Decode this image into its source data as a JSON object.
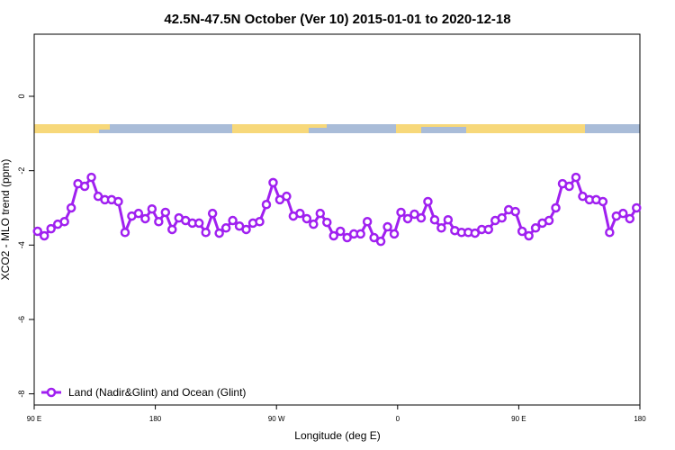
{
  "chart_data": {
    "type": "line",
    "title": "42.5N-47.5N October (Ver 10)   2015-01-01 to 2020-12-18",
    "x_label": "Longitude (deg E)",
    "y_label": "XCO2 - MLO trend (ppm)",
    "xlim": [
      90,
      540
    ],
    "xticks": [
      {
        "value": 90,
        "label": "90 E"
      },
      {
        "value": 180,
        "label": "180"
      },
      {
        "value": 270,
        "label": "90 W"
      },
      {
        "value": 360,
        "label": "0"
      },
      {
        "value": 450,
        "label": "90 E"
      },
      {
        "value": 540,
        "label": "180"
      }
    ],
    "ylim": [
      -8.3,
      1.67
    ],
    "yticks": [
      0,
      -2,
      -4,
      -6,
      -8
    ],
    "legend": "bottom-left",
    "x": [
      92.5,
      97.5,
      102.5,
      107.5,
      112.5,
      117.5,
      122.5,
      127.5,
      132.5,
      137.5,
      142.5,
      147.5,
      152.5,
      157.5,
      162.5,
      167.5,
      172.5,
      177.5,
      182.5,
      187.5,
      192.5,
      197.5,
      202.5,
      207.5,
      212.5,
      217.5,
      222.5,
      227.5,
      232.5,
      237.5,
      242.5,
      247.5,
      252.5,
      257.5,
      262.5,
      267.5,
      272.5,
      277.5,
      282.5,
      287.5,
      292.5,
      297.5,
      302.5,
      307.5,
      312.5,
      317.5,
      322.5,
      327.5,
      332.5,
      337.5,
      342.5,
      347.5,
      352.5,
      357.5,
      362.5,
      367.5,
      372.5,
      377.5,
      382.5,
      387.5,
      392.5,
      397.5,
      402.5,
      407.5,
      412.5,
      417.5,
      422.5,
      427.5,
      432.5,
      437.5,
      442.5,
      447.5,
      452.5,
      457.5,
      462.5,
      467.5,
      472.5,
      477.5,
      482.5,
      487.5,
      492.5,
      497.5,
      502.5,
      507.5,
      512.5,
      517.5,
      522.5,
      527.5,
      532.5,
      537.5
    ],
    "series": [
      {
        "name": "Land (Nadir&Glint) and Ocean (Glint)",
        "color": "#a020f0",
        "values": [
          -3.63,
          -3.75,
          -3.56,
          -3.44,
          -3.37,
          -3.0,
          -2.35,
          -2.42,
          -2.18,
          -2.69,
          -2.78,
          -2.78,
          -2.83,
          -3.66,
          -3.22,
          -3.15,
          -3.29,
          -3.03,
          -3.37,
          -3.12,
          -3.58,
          -3.27,
          -3.34,
          -3.41,
          -3.41,
          -3.66,
          -3.15,
          -3.68,
          -3.54,
          -3.34,
          -3.49,
          -3.58,
          -3.41,
          -3.37,
          -2.91,
          -2.32,
          -2.78,
          -2.69,
          -3.22,
          -3.15,
          -3.29,
          -3.44,
          -3.15,
          -3.39,
          -3.75,
          -3.63,
          -3.8,
          -3.7,
          -3.7,
          -3.37,
          -3.8,
          -3.9,
          -3.51,
          -3.7,
          -3.12,
          -3.29,
          -3.17,
          -3.27,
          -2.83,
          -3.32,
          -3.54,
          -3.32,
          -3.61,
          -3.66,
          -3.66,
          -3.68,
          -3.58,
          -3.58,
          -3.34,
          -3.27,
          -3.05,
          -3.1,
          -3.63,
          -3.75,
          -3.54,
          -3.41,
          -3.34,
          -3.0,
          -2.35,
          -2.42,
          -2.18,
          -2.69,
          -2.78,
          -2.78,
          -2.83,
          -3.66,
          -3.22,
          -3.15,
          -3.29,
          -3.0
        ]
      }
    ]
  }
}
